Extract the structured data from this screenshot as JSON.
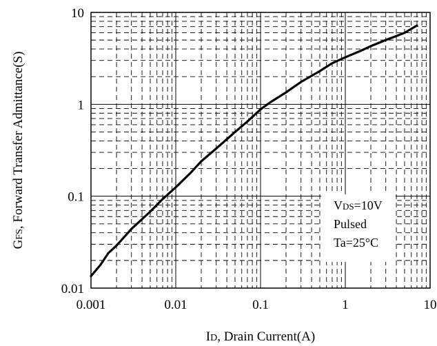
{
  "chart_data": {
    "type": "line",
    "x_scale": "log",
    "y_scale": "log",
    "xlim": [
      0.001,
      10
    ],
    "ylim": [
      0.01,
      10
    ],
    "grid": true,
    "x_ticks": [
      "0.001",
      "0.01",
      "0.1",
      "1",
      "10"
    ],
    "y_ticks": [
      "10",
      "1",
      "0.1",
      "0.01"
    ],
    "xlabel": {
      "main": "I",
      "sub": "D",
      "rest": ", Drain Current(A)"
    },
    "ylabel": {
      "main": "G",
      "sub": "FS",
      "rest": ", Forward Transfer Admittance(S)"
    },
    "annotations": [
      {
        "main": "V",
        "sub": "DS",
        "rest": "=10V"
      },
      {
        "main": "Pulsed",
        "sub": "",
        "rest": ""
      },
      {
        "main": "Ta=25°C",
        "sub": "",
        "rest": ""
      }
    ],
    "series": [
      {
        "points": [
          [
            0.001,
            0.0135
          ],
          [
            0.0013,
            0.018
          ],
          [
            0.0016,
            0.024
          ],
          [
            0.002,
            0.029
          ],
          [
            0.003,
            0.044
          ],
          [
            0.005,
            0.068
          ],
          [
            0.007,
            0.093
          ],
          [
            0.01,
            0.125
          ],
          [
            0.015,
            0.18
          ],
          [
            0.02,
            0.24
          ],
          [
            0.03,
            0.33
          ],
          [
            0.05,
            0.5
          ],
          [
            0.07,
            0.65
          ],
          [
            0.1,
            0.88
          ],
          [
            0.13,
            1.05
          ],
          [
            0.2,
            1.35
          ],
          [
            0.3,
            1.75
          ],
          [
            0.5,
            2.3
          ],
          [
            0.7,
            2.8
          ],
          [
            1,
            3.25
          ],
          [
            1.5,
            3.8
          ],
          [
            2,
            4.3
          ],
          [
            3,
            5.0
          ],
          [
            5,
            6.0
          ],
          [
            7,
            7.2
          ]
        ]
      }
    ]
  }
}
